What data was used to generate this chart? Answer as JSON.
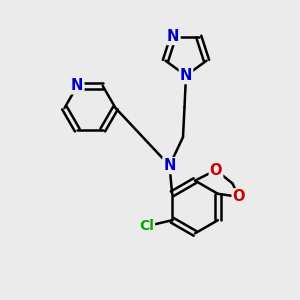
{
  "bg_color": "#ebebeb",
  "bond_color": "#000000",
  "bond_width": 1.8,
  "dbo": 0.09,
  "N_color": "#0000cc",
  "O_color": "#cc0000",
  "Cl_color": "#00aa00",
  "font_size_atom": 10.5,
  "fig_width": 3.0,
  "fig_height": 3.0,
  "xlim": [
    0,
    10
  ],
  "ylim": [
    0,
    10
  ]
}
